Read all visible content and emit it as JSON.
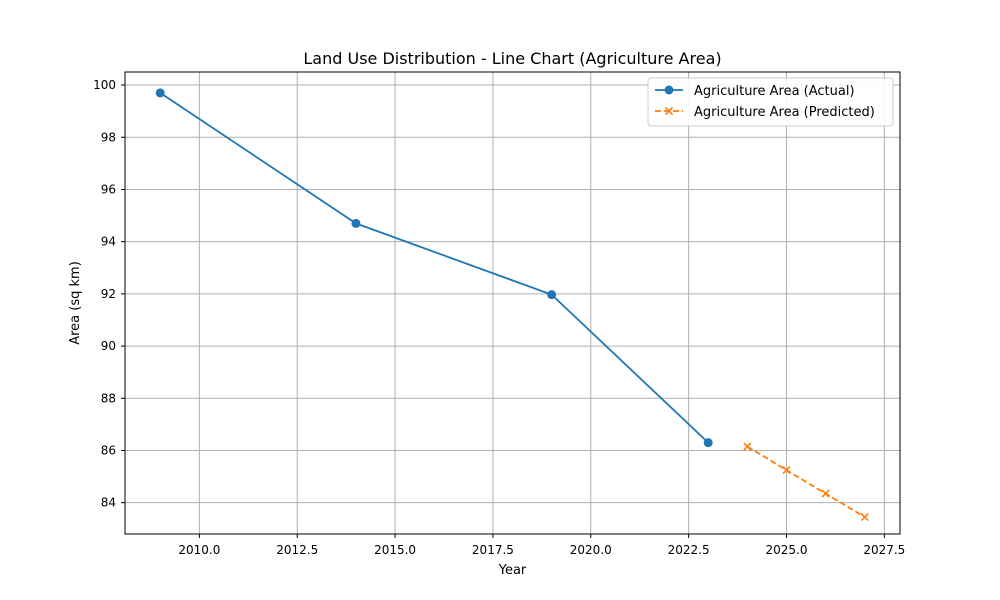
{
  "chart_data": {
    "type": "line",
    "title": "Land Use Distribution - Line Chart (Agriculture Area)",
    "xlabel": "Year",
    "ylabel": "Area (sq km)",
    "xlim": [
      2008.1,
      2027.9
    ],
    "ylim": [
      82.8,
      100.5
    ],
    "x_ticks": [
      2010.0,
      2012.5,
      2015.0,
      2017.5,
      2020.0,
      2022.5,
      2025.0,
      2027.5
    ],
    "x_tick_labels": [
      "2010.0",
      "2012.5",
      "2015.0",
      "2017.5",
      "2020.0",
      "2022.5",
      "2025.0",
      "2027.5"
    ],
    "y_ticks": [
      84,
      86,
      88,
      90,
      92,
      94,
      96,
      98,
      100
    ],
    "y_tick_labels": [
      "84",
      "86",
      "88",
      "90",
      "92",
      "94",
      "96",
      "98",
      "100"
    ],
    "grid": true,
    "legend_position": "top-right",
    "series": [
      {
        "name": "Agriculture Area (Actual)",
        "color": "#1f77b4",
        "marker": "circle",
        "line_style": "solid",
        "x": [
          2009,
          2014,
          2019,
          2023
        ],
        "y": [
          99.7,
          94.7,
          91.97,
          86.3
        ]
      },
      {
        "name": "Agriculture Area (Predicted)",
        "color": "#ff7f0e",
        "marker": "x",
        "line_style": "dashed",
        "x": [
          2024,
          2025,
          2026,
          2027
        ],
        "y": [
          86.15,
          85.25,
          84.35,
          83.45
        ]
      }
    ]
  }
}
